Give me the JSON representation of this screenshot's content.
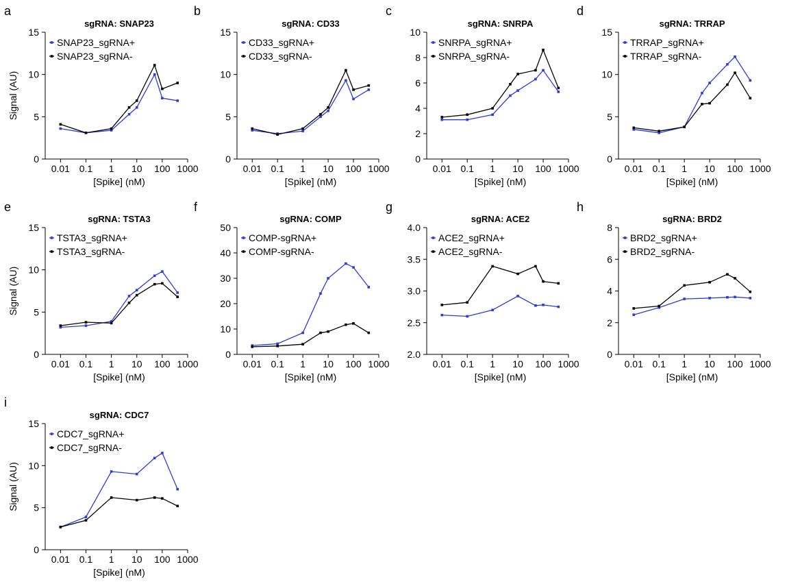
{
  "figure": {
    "colors": {
      "plus": "#2b3bdb",
      "minus": "#000000"
    }
  },
  "chart_data": [
    {
      "type": "line",
      "panel": "a",
      "title": "sgRNA: SNAP23",
      "xlabel": "[Spike] (nM)",
      "ylabel": "Signal (AU)",
      "xscale": "log",
      "xticks": [
        0.01,
        0.1,
        1,
        10,
        100,
        1000
      ],
      "xtick_labels": [
        "0.01",
        "0.1",
        "1",
        "10",
        "100",
        "1000"
      ],
      "xlim": [
        0.0025,
        1000
      ],
      "yticks": [
        0,
        5,
        10,
        15
      ],
      "ytick_labels": [
        "0",
        "5",
        "10",
        "15"
      ],
      "ylim": [
        0,
        15
      ],
      "legend_position": "top-left",
      "x": [
        0.01,
        0.1,
        1,
        5,
        10,
        50,
        100,
        400
      ],
      "series": [
        {
          "name": "SNAP23_sgRNA+",
          "color": "#2b3bdb",
          "values": [
            3.6,
            3.1,
            3.4,
            5.3,
            6.1,
            10.0,
            7.2,
            6.9
          ]
        },
        {
          "name": "SNAP23_sgRNA-",
          "color": "#000000",
          "values": [
            4.1,
            3.1,
            3.6,
            6.1,
            6.9,
            11.1,
            8.3,
            9.0
          ]
        }
      ]
    },
    {
      "type": "line",
      "panel": "b",
      "title": "sgRNA: CD33",
      "xlabel": "[Spike] (nM)",
      "ylabel": "",
      "xscale": "log",
      "xticks": [
        0.01,
        0.1,
        1,
        10,
        100,
        1000
      ],
      "xtick_labels": [
        "0.01",
        "0.1",
        "1",
        "10",
        "100",
        "1000"
      ],
      "xlim": [
        0.0025,
        1000
      ],
      "yticks": [
        0,
        5,
        10,
        15
      ],
      "ytick_labels": [
        "0",
        "5",
        "10",
        "15"
      ],
      "ylim": [
        0,
        15
      ],
      "legend_position": "top-left",
      "x": [
        0.01,
        0.1,
        1,
        5,
        10,
        50,
        100,
        400
      ],
      "series": [
        {
          "name": "CD33_sgRNA+",
          "color": "#2b3bdb",
          "values": [
            3.4,
            3.0,
            3.3,
            5.0,
            5.7,
            9.3,
            7.1,
            8.2
          ]
        },
        {
          "name": "CD33_sgRNA-",
          "color": "#000000",
          "values": [
            3.6,
            2.9,
            3.6,
            5.3,
            6.1,
            10.5,
            8.2,
            8.7
          ]
        }
      ]
    },
    {
      "type": "line",
      "panel": "c",
      "title": "sgRNA: SNRPA",
      "xlabel": "[Spike] (nM)",
      "ylabel": "",
      "xscale": "log",
      "xticks": [
        0.01,
        0.1,
        1,
        10,
        100,
        1000
      ],
      "xtick_labels": [
        "0.01",
        "0.1",
        "1",
        "10",
        "100",
        "1000"
      ],
      "xlim": [
        0.0025,
        1000
      ],
      "yticks": [
        0,
        2,
        4,
        6,
        8,
        10
      ],
      "ytick_labels": [
        "0",
        "2",
        "4",
        "6",
        "8",
        "10"
      ],
      "ylim": [
        0,
        10
      ],
      "legend_position": "top-left",
      "x": [
        0.01,
        0.1,
        1,
        5,
        10,
        50,
        100,
        400
      ],
      "series": [
        {
          "name": "SNRPA_sgRNA+",
          "color": "#2b3bdb",
          "values": [
            3.1,
            3.1,
            3.5,
            5.0,
            5.4,
            6.3,
            7.0,
            5.3
          ]
        },
        {
          "name": "SNRPA_sgRNA-",
          "color": "#000000",
          "values": [
            3.3,
            3.5,
            4.0,
            5.9,
            6.7,
            7.0,
            8.6,
            5.6
          ]
        }
      ]
    },
    {
      "type": "line",
      "panel": "d",
      "title": "sgRNA: TRRAP",
      "xlabel": "[Spike] (nM)",
      "ylabel": "",
      "xscale": "log",
      "xticks": [
        0.01,
        0.1,
        1,
        10,
        100,
        1000
      ],
      "xtick_labels": [
        "0.01",
        "0.1",
        "1",
        "10",
        "100",
        "1000"
      ],
      "xlim": [
        0.0025,
        1000
      ],
      "yticks": [
        0,
        5,
        10,
        15
      ],
      "ytick_labels": [
        "0",
        "5",
        "10",
        "15"
      ],
      "ylim": [
        0,
        15
      ],
      "legend_position": "top-left",
      "x": [
        0.01,
        0.1,
        1,
        5,
        10,
        50,
        100,
        400
      ],
      "series": [
        {
          "name": "TRRAP_sgRNA+",
          "color": "#2b3bdb",
          "values": [
            3.5,
            3.1,
            3.8,
            7.8,
            9.0,
            11.2,
            12.1,
            9.3
          ]
        },
        {
          "name": "TRRAP_sgRNA-",
          "color": "#000000",
          "values": [
            3.7,
            3.3,
            3.8,
            6.5,
            6.6,
            8.8,
            10.2,
            7.2
          ]
        }
      ]
    },
    {
      "type": "line",
      "panel": "e",
      "title": "sgRNA: TSTA3",
      "xlabel": "[Spike] (nM)",
      "ylabel": "Signal (AU)",
      "xscale": "log",
      "xticks": [
        0.01,
        0.1,
        1,
        10,
        100,
        1000
      ],
      "xtick_labels": [
        "0.01",
        "0.1",
        "1",
        "10",
        "100",
        "1000"
      ],
      "xlim": [
        0.0025,
        1000
      ],
      "yticks": [
        0,
        5,
        10,
        15
      ],
      "ytick_labels": [
        "0",
        "5",
        "10",
        "15"
      ],
      "ylim": [
        0,
        15
      ],
      "legend_position": "top-left",
      "x": [
        0.01,
        0.1,
        1,
        5,
        10,
        50,
        100,
        400
      ],
      "series": [
        {
          "name": "TSTA3_sgRNA+",
          "color": "#2b3bdb",
          "values": [
            3.2,
            3.4,
            3.9,
            6.9,
            7.6,
            9.3,
            9.8,
            7.3
          ]
        },
        {
          "name": "TSTA3_sgRNA-",
          "color": "#000000",
          "values": [
            3.4,
            3.8,
            3.7,
            6.1,
            7.0,
            8.3,
            8.4,
            6.8
          ]
        }
      ]
    },
    {
      "type": "line",
      "panel": "f",
      "title": "sgRNA: COMP",
      "xlabel": "[Spike] (nM)",
      "ylabel": "",
      "xscale": "log",
      "xticks": [
        0.01,
        0.1,
        1,
        10,
        100,
        1000
      ],
      "xtick_labels": [
        "0.01",
        "0.1",
        "1",
        "10",
        "100",
        "1000"
      ],
      "xlim": [
        0.0025,
        1000
      ],
      "yticks": [
        0,
        10,
        20,
        30,
        40,
        50
      ],
      "ytick_labels": [
        "0",
        "10",
        "20",
        "30",
        "40",
        "50"
      ],
      "ylim": [
        0,
        50
      ],
      "legend_position": "top-left",
      "x": [
        0.01,
        0.1,
        1,
        5,
        10,
        50,
        100,
        400
      ],
      "series": [
        {
          "name": "COMP-sgRNA+",
          "color": "#2b3bdb",
          "values": [
            3.5,
            4.2,
            8.5,
            24.0,
            30.0,
            35.8,
            34.3,
            26.5
          ]
        },
        {
          "name": "COMP-sgRNA-",
          "color": "#000000",
          "values": [
            3.0,
            3.3,
            4.0,
            8.5,
            9.0,
            11.7,
            12.2,
            8.5
          ]
        }
      ]
    },
    {
      "type": "line",
      "panel": "g",
      "title": "sgRNA: ACE2",
      "xlabel": "[Spike] (nM)",
      "ylabel": "",
      "xscale": "log",
      "xticks": [
        0.01,
        0.1,
        1,
        10,
        100,
        1000
      ],
      "xtick_labels": [
        "0.01",
        "0.1",
        "1",
        "10",
        "100",
        "1000"
      ],
      "xlim": [
        0.0025,
        1000
      ],
      "yticks": [
        2.0,
        2.5,
        3.0,
        3.5,
        4.0
      ],
      "ytick_labels": [
        "2.0",
        "2.5",
        "3.0",
        "3.5",
        "4.0"
      ],
      "ylim": [
        2.0,
        4.0
      ],
      "legend_position": "top-left",
      "x": [
        0.01,
        0.1,
        1,
        10,
        50,
        100,
        400
      ],
      "series": [
        {
          "name": "ACE2_sgRNA+",
          "color": "#2b3bdb",
          "values": [
            2.62,
            2.6,
            2.7,
            2.92,
            2.77,
            2.78,
            2.75
          ]
        },
        {
          "name": "ACE2_sgRNA-",
          "color": "#000000",
          "values": [
            2.78,
            2.82,
            3.39,
            3.27,
            3.39,
            3.15,
            3.12
          ]
        }
      ]
    },
    {
      "type": "line",
      "panel": "h",
      "title": "sgRNA: BRD2",
      "xlabel": "[Spike] (nM)",
      "ylabel": "",
      "xscale": "log",
      "xticks": [
        0.01,
        0.1,
        1,
        10,
        100,
        1000
      ],
      "xtick_labels": [
        "0.01",
        "0.1",
        "1",
        "10",
        "100",
        "1000"
      ],
      "xlim": [
        0.0025,
        1000
      ],
      "yticks": [
        0,
        2,
        4,
        6,
        8
      ],
      "ytick_labels": [
        "0",
        "2",
        "4",
        "6",
        "8"
      ],
      "ylim": [
        0,
        8
      ],
      "legend_position": "top-left",
      "x": [
        0.01,
        0.1,
        1,
        10,
        50,
        100,
        400
      ],
      "series": [
        {
          "name": "BRD2_sgRNA+",
          "color": "#2b3bdb",
          "values": [
            2.5,
            2.95,
            3.5,
            3.55,
            3.6,
            3.62,
            3.55
          ]
        },
        {
          "name": "BRD2_sgRNA-",
          "color": "#000000",
          "values": [
            2.9,
            3.05,
            4.35,
            4.55,
            5.05,
            4.8,
            3.95
          ]
        }
      ]
    },
    {
      "type": "line",
      "panel": "i",
      "title": "sgRNA: CDC7",
      "xlabel": "[Spike] (nM)",
      "ylabel": "Signal (AU)",
      "xscale": "log",
      "xticks": [
        0.01,
        0.1,
        1,
        10,
        100,
        1000
      ],
      "xtick_labels": [
        "0.01",
        "0.1",
        "1",
        "10",
        "100",
        "1000"
      ],
      "xlim": [
        0.0025,
        1000
      ],
      "yticks": [
        0,
        5,
        10,
        15
      ],
      "ytick_labels": [
        "0",
        "5",
        "10",
        "15"
      ],
      "ylim": [
        0,
        15
      ],
      "legend_position": "top-left",
      "x": [
        0.01,
        0.1,
        1,
        10,
        50,
        100,
        400
      ],
      "series": [
        {
          "name": "CDC7_sgRNA+",
          "color": "#2b3bdb",
          "values": [
            2.7,
            3.9,
            9.3,
            9.0,
            10.9,
            11.5,
            7.2
          ]
        },
        {
          "name": "CDC7_sgRNA-",
          "color": "#000000",
          "values": [
            2.7,
            3.5,
            6.2,
            5.9,
            6.2,
            6.1,
            5.2
          ]
        }
      ]
    }
  ]
}
